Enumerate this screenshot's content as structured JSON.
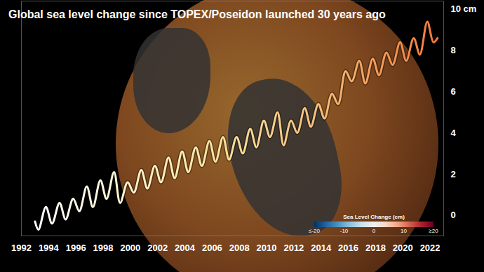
{
  "chart_data": {
    "type": "line",
    "title": "Global sea level change since TOPEX/Poseidon launched 30 years ago",
    "x": [
      1993.0,
      1993.25,
      1993.8,
      1994.25,
      1994.8,
      1995.25,
      1995.8,
      1996.25,
      1996.8,
      1997.25,
      1997.8,
      1998.25,
      1998.8,
      1999.25,
      1999.8,
      2000.25,
      2000.8,
      2001.25,
      2001.8,
      2002.25,
      2002.8,
      2003.25,
      2003.8,
      2004.25,
      2004.8,
      2005.25,
      2005.8,
      2006.25,
      2006.8,
      2007.25,
      2007.8,
      2008.25,
      2008.8,
      2009.25,
      2009.8,
      2010.25,
      2010.8,
      2011.25,
      2011.8,
      2012.25,
      2012.8,
      2013.25,
      2013.8,
      2014.25,
      2014.8,
      2015.25,
      2015.8,
      2016.25,
      2016.8,
      2017.25,
      2017.8,
      2018.25,
      2018.8,
      2019.25,
      2019.8,
      2020.25,
      2020.8,
      2021.25,
      2021.8,
      2022.25,
      2022.55
    ],
    "values": [
      -0.3,
      -0.7,
      0.4,
      -0.4,
      0.6,
      -0.2,
      0.8,
      0.2,
      1.4,
      0.4,
      1.7,
      0.8,
      2.1,
      0.6,
      1.6,
      1.1,
      2.2,
      1.3,
      2.4,
      1.6,
      2.8,
      1.8,
      3.1,
      2.1,
      3.3,
      2.4,
      3.6,
      2.6,
      3.8,
      2.7,
      3.8,
      3.0,
      4.2,
      3.3,
      4.6,
      3.8,
      5.0,
      3.4,
      4.6,
      4.0,
      5.2,
      4.3,
      5.4,
      4.7,
      5.9,
      5.4,
      7.0,
      6.5,
      7.5,
      6.4,
      7.6,
      6.8,
      7.9,
      7.3,
      8.4,
      7.5,
      8.6,
      7.8,
      9.4,
      8.4,
      8.6
    ],
    "xlim": [
      1992,
      2023
    ],
    "xticks": [
      1992,
      1994,
      1996,
      1998,
      2000,
      2002,
      2004,
      2006,
      2008,
      2010,
      2012,
      2014,
      2016,
      2018,
      2020,
      2022
    ],
    "ylim": [
      -1.0,
      10.4
    ],
    "yticks": [
      0,
      2,
      4,
      6,
      8,
      {
        "value": 10,
        "label": "10 cm"
      }
    ],
    "grid": false,
    "colorbar": {
      "title": "Sea Level Change (cm)",
      "range": [
        -20,
        20
      ],
      "ticks": [
        {
          "value": -20,
          "label": "≤-20"
        },
        -10,
        0,
        10,
        {
          "value": 20,
          "label": "≥20"
        }
      ]
    }
  }
}
